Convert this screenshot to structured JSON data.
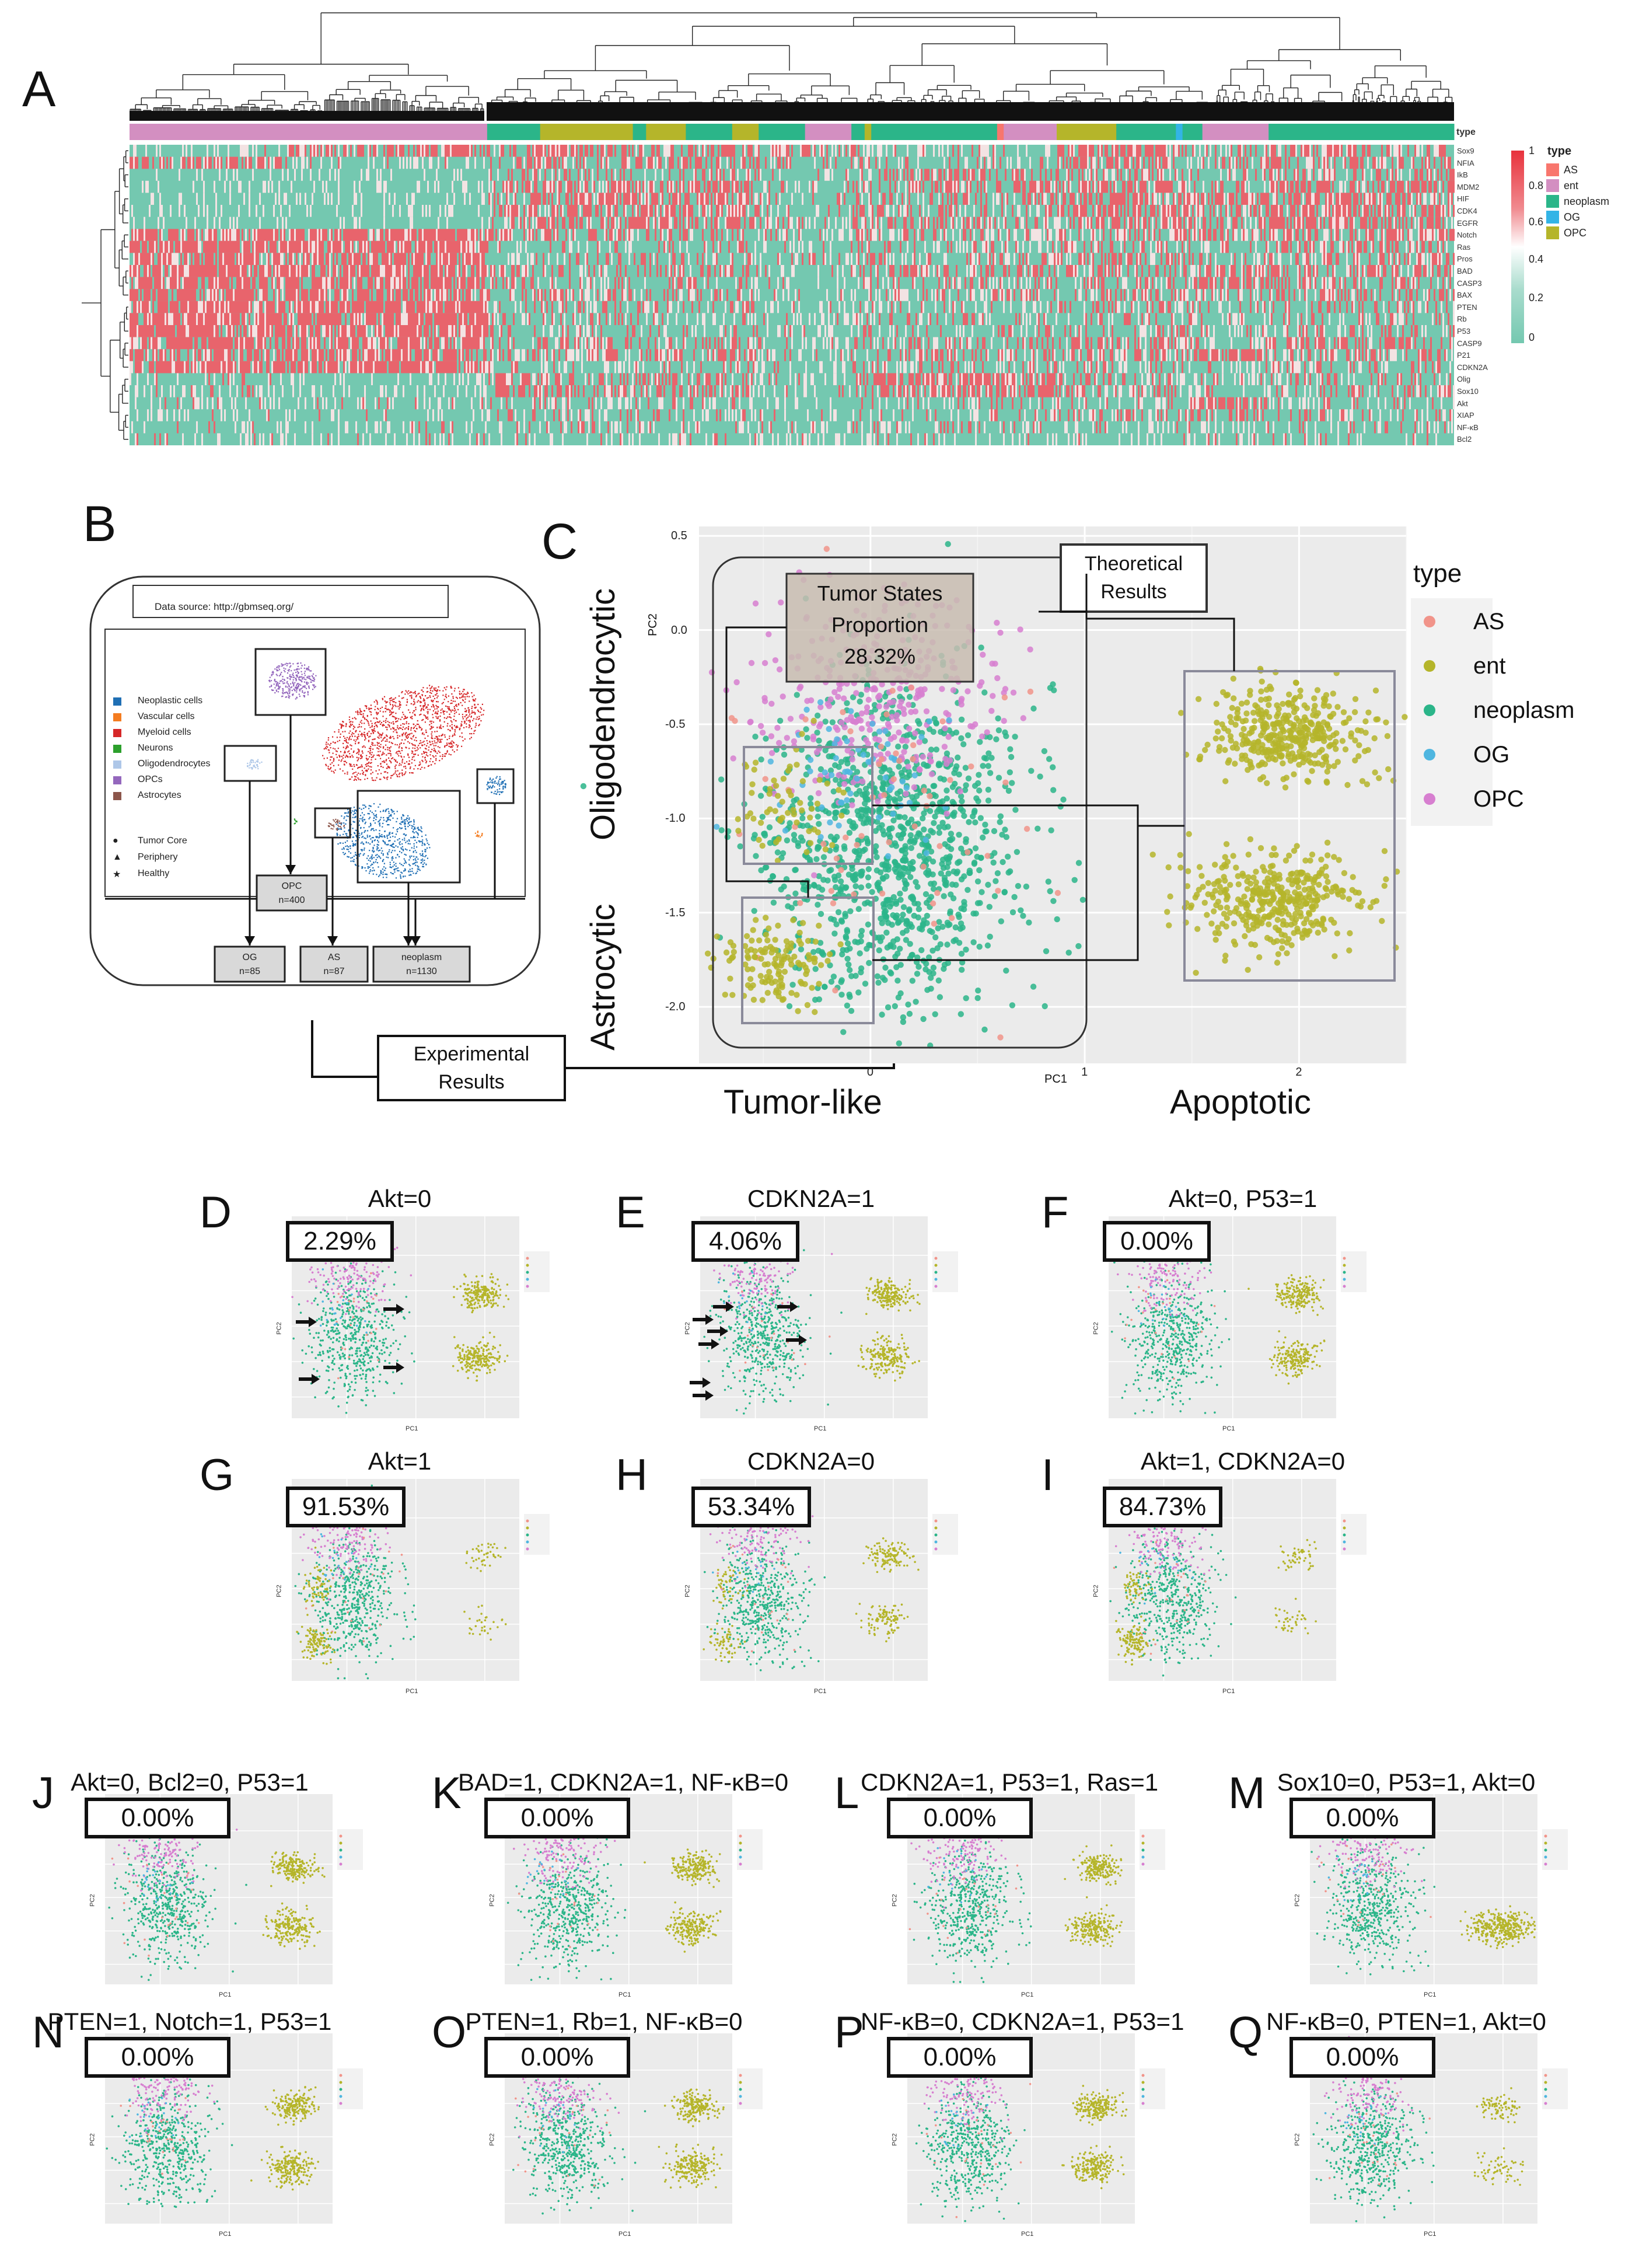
{
  "panels": {
    "A": "A",
    "B": "B",
    "C": "C",
    "D": "D",
    "E": "E",
    "F": "F",
    "G": "G",
    "H": "H",
    "I": "I",
    "J": "J",
    "K": "K",
    "L": "L",
    "M": "M",
    "N": "N",
    "O": "O",
    "P": "P",
    "Q": "Q"
  },
  "heatmap": {
    "genes": [
      "Sox9",
      "NFIA",
      "IkB",
      "MDM2",
      "HIF",
      "CDK4",
      "EGFR",
      "Notch",
      "Ras",
      "Pros",
      "BAD",
      "CASP3",
      "BAX",
      "PTEN",
      "Rb",
      "P53",
      "CASP9",
      "P21",
      "CDKN2A",
      "Olig",
      "Sox10",
      "Akt",
      "XIAP",
      "NF-κB",
      "Bcl2"
    ],
    "type_label": "type",
    "scale_ticks": [
      "1",
      "0.8",
      "0.6",
      "0.4",
      "0.2",
      "0"
    ],
    "legend_title": "type",
    "legend_items": [
      "AS",
      "ent",
      "neoplasm",
      "OG",
      "OPC"
    ],
    "colors": {
      "AS": "#f8766d",
      "ent": "#d38fc1",
      "neoplasm": "#2bb589",
      "OG": "#33b4e6",
      "OPC": "#b5b52a",
      "low": "#74c8b0",
      "high": "#e8323c",
      "mid": "#ffffff"
    }
  },
  "panelB": {
    "data_source": "Data source: http://gbmseq.org/",
    "legend": [
      "Neoplastic cells",
      "Vascular cells",
      "Myeloid cells",
      "Neurons",
      "Oligodendrocytes",
      "OPCs",
      "Astrocytes"
    ],
    "legend_colors": [
      "#1f6fb4",
      "#f47c20",
      "#d62728",
      "#2ca02c",
      "#aec7e8",
      "#9467bd",
      "#8c564b"
    ],
    "shapes": [
      "Tumor Core",
      "Periphery",
      "Healthy"
    ],
    "opc_box": "OPC",
    "opc_n": "n=400",
    "og_box": "OG",
    "og_n": "n=85",
    "as_box": "AS",
    "as_n": "n=87",
    "neo_box": "neoplasm",
    "neo_n": "n=1130",
    "experimental": [
      "Experimental",
      "Results"
    ]
  },
  "panelC": {
    "side_top": "Oligodendrocytic",
    "side_bottom": "Astrocytic",
    "xaxis_title": "PC1",
    "yaxis_title": "PC2",
    "x_ticks": [
      "0",
      "1",
      "2"
    ],
    "y_ticks": [
      "0.5",
      "0.0",
      "-0.5",
      "-1.0",
      "-1.5",
      "-2.0"
    ],
    "tumor_states": [
      "Tumor States",
      "Proportion",
      "28.32%"
    ],
    "theoretical": [
      "Theoretical",
      "Results"
    ],
    "tumor_like": "Tumor-like",
    "apoptotic": "Apoptotic",
    "legend_title": "type",
    "legend_items": [
      "AS",
      "ent",
      "neoplasm",
      "OG",
      "OPC"
    ]
  },
  "chart_data": {
    "type": "scatter",
    "title": "",
    "xlabel": "PC1",
    "ylabel": "PC2",
    "xlim": [
      -0.8,
      2.5
    ],
    "ylim": [
      -2.3,
      0.55
    ],
    "series": [
      {
        "name": "AS",
        "center": [
          0.15,
          -1.2
        ],
        "spread": [
          0.35,
          0.5
        ]
      },
      {
        "name": "ent",
        "clusters": [
          [
            -0.45,
            -1.75
          ],
          [
            1.95,
            -0.55
          ],
          [
            1.95,
            -1.45
          ]
        ]
      },
      {
        "name": "neoplasm",
        "center": [
          0.1,
          -1.2
        ],
        "spread": [
          0.45,
          0.6
        ]
      },
      {
        "name": "OG",
        "center": [
          0.0,
          -0.6
        ],
        "spread": [
          0.3,
          0.3
        ]
      },
      {
        "name": "OPC",
        "center": [
          0.05,
          -0.35
        ],
        "spread": [
          0.35,
          0.3
        ]
      }
    ]
  },
  "mini": [
    {
      "id": "D",
      "title": "Akt=0",
      "pct": "2.29%"
    },
    {
      "id": "E",
      "title": "CDKN2A=1",
      "pct": "4.06%"
    },
    {
      "id": "F",
      "title": "Akt=0, P53=1",
      "pct": "0.00%"
    },
    {
      "id": "G",
      "title": "Akt=1",
      "pct": "91.53%"
    },
    {
      "id": "H",
      "title": "CDKN2A=0",
      "pct": "53.34%"
    },
    {
      "id": "I",
      "title": "Akt=1, CDKN2A=0",
      "pct": "84.73%"
    },
    {
      "id": "J",
      "title": "Akt=0, Bcl2=0, P53=1",
      "pct": "0.00%"
    },
    {
      "id": "K",
      "title": "BAD=1, CDKN2A=1, NF-κB=0",
      "pct": "0.00%"
    },
    {
      "id": "L",
      "title": "CDKN2A=1, P53=1, Ras=1",
      "pct": "0.00%"
    },
    {
      "id": "M",
      "title": "Sox10=0, P53=1, Akt=0",
      "pct": "0.00%"
    },
    {
      "id": "N",
      "title": "PTEN=1, Notch=1, P53=1",
      "pct": "0.00%"
    },
    {
      "id": "O",
      "title": "PTEN=1, Rb=1, NF-κB=0",
      "pct": "0.00%"
    },
    {
      "id": "P",
      "title": "NF-κB=0, CDKN2A=1, P53=1",
      "pct": "0.00%"
    },
    {
      "id": "Q",
      "title": "NF-κB=0, PTEN=1, Akt=0",
      "pct": "0.00%"
    }
  ],
  "mini_axis": {
    "x": "PC1",
    "y": "PC2",
    "legend_title": "type",
    "legend_items": [
      "AS",
      "ent",
      "neoplasm",
      "OG",
      "OPC"
    ]
  }
}
